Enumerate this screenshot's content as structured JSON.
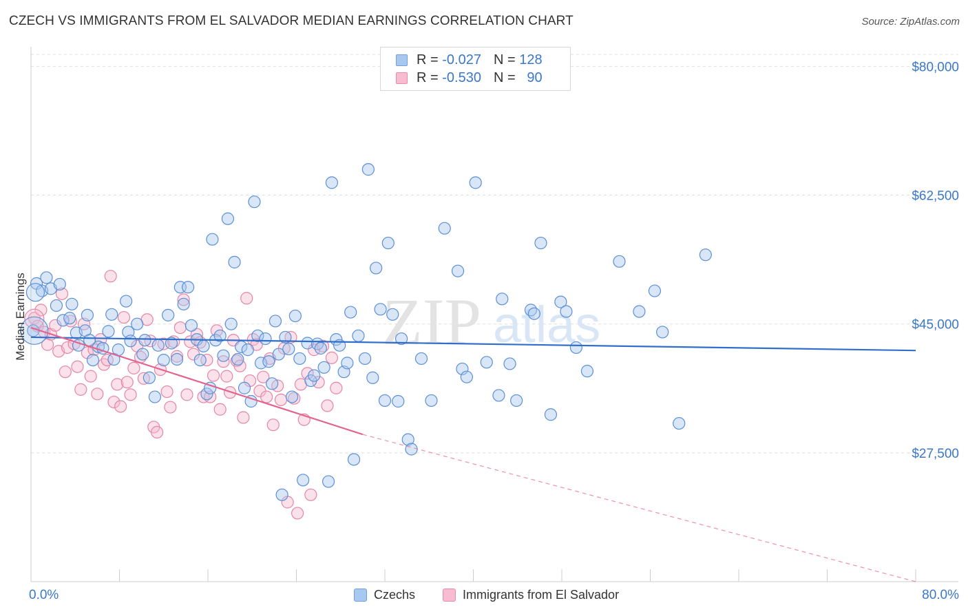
{
  "header": {
    "title": "CZECH VS IMMIGRANTS FROM EL SALVADOR MEDIAN EARNINGS CORRELATION CHART",
    "source": "Source: ZipAtlas.com"
  },
  "watermark": {
    "zip": "ZIP",
    "atlas": "atlas"
  },
  "legend": {
    "rows": [
      {
        "r_label": "R =",
        "r_value": "-0.027",
        "n_label": "N =",
        "n_value": "128",
        "color": "#a9c8ef",
        "border": "#6f9fdc"
      },
      {
        "r_label": "R =",
        "r_value": "-0.530",
        "n_label": "N =",
        "n_value": "90",
        "color": "#f7bcd0",
        "border": "#e98aa9"
      }
    ]
  },
  "bottom_legend": {
    "czechs": "Czechs",
    "salvador": "Immigrants from El Salvador"
  },
  "colors": {
    "blue_fill": "#a9c8ef",
    "blue_stroke": "#5b8fd6",
    "blue_line": "#2f6fcb",
    "pink_fill": "#f7bcd0",
    "pink_stroke": "#e585a6",
    "pink_line": "#e2648e",
    "grid": "#dddddd",
    "axis_label": "#3a78c9"
  },
  "chart_data": {
    "type": "scatter",
    "title": "CZECH VS IMMIGRANTS FROM EL SALVADOR MEDIAN EARNINGS CORRELATION CHART",
    "xlabel": "",
    "ylabel": "Median Earnings",
    "xlim": [
      0,
      80
    ],
    "ylim": [
      10000,
      82000
    ],
    "x_tick_labels": [
      "0.0%",
      "80.0%"
    ],
    "y_ticks": [
      27500,
      45000,
      62500,
      80000
    ],
    "y_tick_labels": [
      "$27,500",
      "$45,000",
      "$62,500",
      "$80,000"
    ],
    "series": [
      {
        "name": "Czechs",
        "r": -0.027,
        "n": 128,
        "trend": {
          "x": [
            0,
            80
          ],
          "y": [
            43200,
            41400
          ]
        },
        "points": [
          [
            0.2,
            44100
          ],
          [
            0.5,
            50500
          ],
          [
            1.0,
            49500
          ],
          [
            1.4,
            51300
          ],
          [
            1.8,
            49800
          ],
          [
            2.3,
            47500
          ],
          [
            2.6,
            50400
          ],
          [
            2.9,
            45500
          ],
          [
            3.5,
            45800
          ],
          [
            3.7,
            47700
          ],
          [
            4.1,
            43800
          ],
          [
            4.3,
            42100
          ],
          [
            4.9,
            44100
          ],
          [
            5.1,
            46200
          ],
          [
            5.3,
            42800
          ],
          [
            5.6,
            40100
          ],
          [
            6.1,
            41900
          ],
          [
            6.5,
            41700
          ],
          [
            7.0,
            44000
          ],
          [
            7.3,
            46300
          ],
          [
            7.5,
            40200
          ],
          [
            7.9,
            41500
          ],
          [
            8.6,
            48100
          ],
          [
            8.8,
            43900
          ],
          [
            9.0,
            42700
          ],
          [
            9.6,
            45000
          ],
          [
            10.1,
            40900
          ],
          [
            10.3,
            42800
          ],
          [
            10.7,
            37700
          ],
          [
            11.2,
            35100
          ],
          [
            11.5,
            42100
          ],
          [
            12.0,
            40100
          ],
          [
            12.4,
            46200
          ],
          [
            12.7,
            42400
          ],
          [
            13.2,
            40200
          ],
          [
            13.5,
            50000
          ],
          [
            13.8,
            47700
          ],
          [
            14.2,
            50000
          ],
          [
            14.5,
            44800
          ],
          [
            15.0,
            42900
          ],
          [
            15.3,
            40100
          ],
          [
            15.6,
            42000
          ],
          [
            15.9,
            35500
          ],
          [
            16.2,
            36300
          ],
          [
            16.4,
            56500
          ],
          [
            16.7,
            42800
          ],
          [
            17.1,
            43400
          ],
          [
            17.4,
            40700
          ],
          [
            17.8,
            59300
          ],
          [
            18.1,
            45000
          ],
          [
            18.4,
            53400
          ],
          [
            18.7,
            40200
          ],
          [
            19.0,
            41900
          ],
          [
            19.3,
            36300
          ],
          [
            19.6,
            41500
          ],
          [
            19.9,
            34500
          ],
          [
            20.2,
            61600
          ],
          [
            20.5,
            43400
          ],
          [
            20.8,
            39700
          ],
          [
            21.2,
            43000
          ],
          [
            21.5,
            39900
          ],
          [
            21.8,
            36900
          ],
          [
            22.1,
            45400
          ],
          [
            22.4,
            40900
          ],
          [
            22.7,
            21800
          ],
          [
            23.0,
            43200
          ],
          [
            23.3,
            41600
          ],
          [
            23.6,
            35100
          ],
          [
            23.9,
            46100
          ],
          [
            24.3,
            40300
          ],
          [
            24.6,
            23800
          ],
          [
            25.0,
            42400
          ],
          [
            25.3,
            37300
          ],
          [
            25.6,
            38000
          ],
          [
            25.9,
            42300
          ],
          [
            26.2,
            41700
          ],
          [
            26.5,
            39100
          ],
          [
            26.9,
            23600
          ],
          [
            27.2,
            64200
          ],
          [
            27.6,
            42900
          ],
          [
            27.9,
            42100
          ],
          [
            28.3,
            38500
          ],
          [
            28.6,
            39700
          ],
          [
            28.9,
            46600
          ],
          [
            29.2,
            26600
          ],
          [
            29.6,
            43400
          ],
          [
            30.2,
            40300
          ],
          [
            30.5,
            66000
          ],
          [
            30.9,
            37700
          ],
          [
            31.2,
            52600
          ],
          [
            31.6,
            47000
          ],
          [
            32.0,
            34600
          ],
          [
            32.3,
            56000
          ],
          [
            32.7,
            46300
          ],
          [
            33.2,
            34500
          ],
          [
            33.5,
            43000
          ],
          [
            34.1,
            29300
          ],
          [
            34.4,
            28000
          ],
          [
            35.3,
            40300
          ],
          [
            36.2,
            34600
          ],
          [
            37.4,
            58000
          ],
          [
            38.6,
            52200
          ],
          [
            39.0,
            38900
          ],
          [
            39.4,
            37800
          ],
          [
            40.2,
            64200
          ],
          [
            41.2,
            39800
          ],
          [
            42.3,
            35300
          ],
          [
            42.6,
            48400
          ],
          [
            43.3,
            39600
          ],
          [
            43.9,
            34600
          ],
          [
            45.2,
            46900
          ],
          [
            45.5,
            46400
          ],
          [
            46.1,
            56000
          ],
          [
            47.0,
            32700
          ],
          [
            47.9,
            48000
          ],
          [
            48.4,
            46700
          ],
          [
            49.3,
            41800
          ],
          [
            50.3,
            38600
          ],
          [
            53.2,
            53500
          ],
          [
            55.0,
            46700
          ],
          [
            56.4,
            49500
          ],
          [
            57.1,
            43900
          ],
          [
            58.6,
            31500
          ],
          [
            61.0,
            54400
          ]
        ]
      },
      {
        "name": "Immigrants from El Salvador",
        "r": -0.53,
        "n": 90,
        "trend": {
          "x": [
            0,
            30
          ],
          "y": [
            44500,
            30000
          ]
        },
        "trend_extension": {
          "x": [
            30,
            80
          ],
          "y": [
            30000,
            10000
          ]
        },
        "points": [
          [
            0.3,
            45800
          ],
          [
            0.6,
            44700
          ],
          [
            0.9,
            46900
          ],
          [
            1.2,
            43900
          ],
          [
            1.5,
            42200
          ],
          [
            1.8,
            43600
          ],
          [
            2.2,
            44800
          ],
          [
            2.5,
            41300
          ],
          [
            2.8,
            49100
          ],
          [
            3.1,
            38500
          ],
          [
            3.3,
            41800
          ],
          [
            3.6,
            45400
          ],
          [
            3.9,
            42300
          ],
          [
            4.2,
            39200
          ],
          [
            4.5,
            36100
          ],
          [
            4.8,
            45000
          ],
          [
            5.1,
            41100
          ],
          [
            5.4,
            37900
          ],
          [
            5.7,
            41500
          ],
          [
            6.0,
            35500
          ],
          [
            6.3,
            42900
          ],
          [
            6.6,
            39500
          ],
          [
            6.9,
            40100
          ],
          [
            7.2,
            51500
          ],
          [
            7.5,
            34400
          ],
          [
            7.8,
            36800
          ],
          [
            8.1,
            33800
          ],
          [
            8.4,
            45900
          ],
          [
            8.7,
            37100
          ],
          [
            9.0,
            35400
          ],
          [
            9.3,
            39000
          ],
          [
            9.6,
            42000
          ],
          [
            9.9,
            40500
          ],
          [
            10.2,
            37600
          ],
          [
            10.5,
            45600
          ],
          [
            10.8,
            42700
          ],
          [
            11.1,
            31000
          ],
          [
            11.4,
            30300
          ],
          [
            11.7,
            38800
          ],
          [
            12.0,
            42300
          ],
          [
            12.3,
            35800
          ],
          [
            12.6,
            33700
          ],
          [
            12.9,
            42600
          ],
          [
            13.2,
            40600
          ],
          [
            13.5,
            44500
          ],
          [
            13.8,
            48300
          ],
          [
            14.1,
            35400
          ],
          [
            14.4,
            42600
          ],
          [
            14.7,
            40900
          ],
          [
            15.0,
            43600
          ],
          [
            15.3,
            42500
          ],
          [
            15.6,
            35100
          ],
          [
            15.9,
            40100
          ],
          [
            16.2,
            35100
          ],
          [
            16.5,
            38000
          ],
          [
            16.8,
            44100
          ],
          [
            17.1,
            33400
          ],
          [
            17.4,
            39900
          ],
          [
            17.7,
            37900
          ],
          [
            18.0,
            35700
          ],
          [
            18.3,
            42800
          ],
          [
            18.6,
            40000
          ],
          [
            18.9,
            39300
          ],
          [
            19.2,
            32300
          ],
          [
            19.5,
            48500
          ],
          [
            19.8,
            37300
          ],
          [
            20.1,
            42900
          ],
          [
            20.4,
            42200
          ],
          [
            20.7,
            35900
          ],
          [
            21.0,
            37800
          ],
          [
            21.3,
            35100
          ],
          [
            21.6,
            40300
          ],
          [
            21.9,
            31300
          ],
          [
            22.3,
            36600
          ],
          [
            22.6,
            34700
          ],
          [
            22.9,
            41700
          ],
          [
            23.2,
            20800
          ],
          [
            23.5,
            43200
          ],
          [
            23.8,
            34900
          ],
          [
            24.1,
            19300
          ],
          [
            24.4,
            36800
          ],
          [
            24.7,
            32000
          ],
          [
            25.0,
            38300
          ],
          [
            25.3,
            21800
          ],
          [
            25.6,
            41500
          ],
          [
            26.0,
            37100
          ],
          [
            26.4,
            42000
          ],
          [
            26.8,
            33900
          ],
          [
            27.2,
            40400
          ],
          [
            27.6,
            36300
          ]
        ]
      }
    ]
  }
}
